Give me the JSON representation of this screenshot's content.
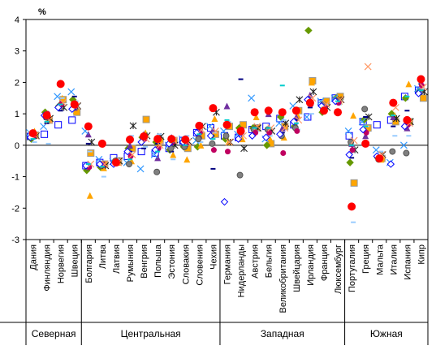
{
  "chart_data": {
    "type": "scatter",
    "ylabel": "%",
    "ylim": [
      -3,
      4
    ],
    "yticks": [
      "-3",
      "-2",
      "-1",
      "0",
      "1",
      "2",
      "3",
      "4"
    ],
    "grid": false,
    "legend": "none",
    "categories": [
      "Дания",
      "Финляндия",
      "Норвегия",
      "Швеция",
      "Болгария",
      "Литва",
      "Латвия",
      "Румыния",
      "Венгрия",
      "Польша",
      "Эстония",
      "Словакия",
      "Словения",
      "Чехия",
      "Германия",
      "Нидерланды",
      "Австрия",
      "Бельгия",
      "Великобритания",
      "Швейцария",
      "Ирландия",
      "Франция",
      "Люксембург",
      "Португалия",
      "Греция",
      "Мальта",
      "Италия",
      "Испания",
      "Кипр"
    ],
    "groups": [
      {
        "name": "Северная",
        "count": 4
      },
      {
        "name": "Центральная",
        "count": 10
      },
      {
        "name": "Западная",
        "count": 9
      },
      {
        "name": "Южная",
        "count": 6
      }
    ],
    "colors": {
      "red": "#ff0000",
      "blue": "#0000ff",
      "orange": "#ffa500",
      "green": "#669900",
      "purple": "#7030a0",
      "navy": "#000080",
      "skyblue": "#3399ff",
      "lightblue": "#99ccff",
      "cyan": "#00cccc",
      "gray": "#808080",
      "dark": "#222222",
      "magenta": "#c00060",
      "salmon": "#ff9966"
    },
    "series": [
      {
        "marker": "circle",
        "color": "red",
        "values": [
          0.38,
          0.95,
          1.95,
          1.3,
          0.6,
          0.05,
          -0.55,
          0.18,
          0.28,
          0.2,
          0.2,
          0.18,
          0.62,
          1.18,
          0.65,
          0.45,
          1.05,
          1.1,
          1.05,
          1.1,
          1.35,
          1.1,
          1.05,
          -1.95,
          0.05,
          -0.42,
          1.35,
          0.8,
          2.1
        ]
      },
      {
        "marker": "square",
        "color": "blue",
        "values": [
          0.28,
          0.35,
          0.65,
          0.8,
          -0.65,
          -0.55,
          -0.4,
          -0.35,
          -0.2,
          -0.25,
          -0.1,
          0.15,
          0.4,
          0.55,
          0.3,
          0.25,
          0.5,
          0.6,
          0.85,
          0.65,
          0.9,
          1.35,
          1.5,
          0.3,
          0.75,
          0.65,
          0.8,
          1.55,
          1.75
        ]
      },
      {
        "marker": "square",
        "color": "orange",
        "values": [
          0.32,
          0.8,
          1.45,
          1.05,
          -0.25,
          -0.6,
          -0.5,
          -0.1,
          0.82,
          0.15,
          0.15,
          -0.1,
          0.3,
          0.35,
          0.6,
          0.65,
          0.55,
          0.05,
          0.6,
          1.1,
          2.05,
          1.4,
          1.55,
          -1.2,
          0.55,
          -0.42,
          0.75,
          0.75,
          1.5
        ]
      },
      {
        "marker": "diamond",
        "color": "green",
        "values": [
          0.2,
          1.05,
          1.25,
          1.45,
          -0.8,
          -0.7,
          -0.55,
          -0.1,
          0.25,
          0.1,
          -0.15,
          -0.05,
          -0.05,
          0.3,
          0.2,
          0.55,
          0.55,
          0.0,
          0.9,
          0.6,
          3.65,
          1.05,
          1.5,
          -0.55,
          0.8,
          -0.4,
          1.0,
          1.5,
          1.7
        ]
      },
      {
        "marker": "triangle",
        "color": "orange",
        "values": [
          0.45,
          1.0,
          1.5,
          1.1,
          -1.6,
          -0.72,
          -0.55,
          -0.5,
          0.4,
          0.05,
          -0.3,
          -0.45,
          0.0,
          0.85,
          0.1,
          0.2,
          0.9,
          0.2,
          0.25,
          0.95,
          2.0,
          1.35,
          1.4,
          0.95,
          0.55,
          -0.45,
          0.95,
          1.95,
          1.75
        ]
      },
      {
        "marker": "triangle",
        "color": "purple",
        "values": [
          0.3,
          0.9,
          1.35,
          1.2,
          0.35,
          -0.62,
          -0.48,
          0.0,
          0.35,
          -0.4,
          0.25,
          0.05,
          0.3,
          0.5,
          1.25,
          0.4,
          0.45,
          1.0,
          0.55,
          0.9,
          1.6,
          1.3,
          1.45,
          0.05,
          0.3,
          -0.4,
          0.9,
          0.55,
          1.75
        ]
      },
      {
        "marker": "x",
        "color": "skyblue",
        "values": [
          0.4,
          0.6,
          1.55,
          1.7,
          0.45,
          -0.45,
          -0.52,
          -0.55,
          -0.75,
          -0.3,
          0.0,
          0.2,
          0.15,
          0.6,
          0.45,
          0.35,
          1.5,
          0.2,
          0.7,
          1.25,
          0.9,
          1.4,
          1.5,
          0.45,
          0.75,
          -0.15,
          -0.55,
          0.0,
          1.8
        ]
      },
      {
        "marker": "star",
        "color": "dark",
        "values": [
          0.3,
          0.85,
          1.2,
          1.25,
          0.1,
          -0.65,
          -0.5,
          0.62,
          0.3,
          0.28,
          0.0,
          0.12,
          0.6,
          1.05,
          0.1,
          -0.1,
          0.55,
          0.45,
          0.7,
          1.45,
          1.7,
          1.2,
          1.45,
          -0.15,
          0.9,
          -0.3,
          0.85,
          0.75,
          1.7
        ]
      },
      {
        "marker": "dash",
        "color": "navy",
        "values": [
          0.35,
          0.7,
          1.1,
          1.55,
          0.05,
          -0.55,
          -0.55,
          -0.2,
          -0.1,
          0.05,
          -0.2,
          0.0,
          0.25,
          -0.75,
          0.6,
          2.1,
          1.0,
          0.5,
          0.4,
          0.8,
          1.2,
          1.25,
          1.35,
          -0.4,
          0.9,
          -0.35,
          0.6,
          1.1,
          1.95
        ]
      },
      {
        "marker": "dash",
        "color": "lightblue",
        "values": [
          0.1,
          0.05,
          1.5,
          1.4,
          -0.2,
          -1.0,
          -0.45,
          0.3,
          -0.05,
          0.35,
          -0.45,
          0.3,
          0.1,
          0.4,
          0.75,
          0.35,
          0.45,
          0.3,
          0.8,
          0.5,
          1.0,
          1.3,
          1.3,
          -2.45,
          0.6,
          -0.2,
          0.3,
          0.3,
          1.8
        ]
      },
      {
        "marker": "circle",
        "color": "gray",
        "values": [
          0.25,
          0.9,
          1.25,
          1.2,
          -0.7,
          -0.65,
          -0.5,
          -0.6,
          0.25,
          -0.85,
          -0.1,
          -0.05,
          0.2,
          0.05,
          0.3,
          -0.95,
          0.5,
          0.5,
          0.3,
          0.55,
          1.4,
          1.3,
          1.4,
          0.1,
          1.15,
          -0.45,
          -0.2,
          -0.25,
          1.7
        ]
      },
      {
        "marker": "circle",
        "color": "magenta",
        "values": [
          0.3,
          1.0,
          1.3,
          1.25,
          -0.7,
          -0.62,
          -0.58,
          -0.35,
          0.2,
          -0.1,
          0.1,
          0.05,
          0.4,
          -0.15,
          -0.2,
          0.5,
          0.4,
          0.4,
          -0.25,
          0.45,
          1.3,
          1.2,
          1.35,
          -0.15,
          0.4,
          -0.4,
          1.35,
          0.65,
          1.9
        ]
      },
      {
        "marker": "diamond",
        "color": "blue",
        "values": [
          0.25,
          0.95,
          1.2,
          1.15,
          -0.65,
          -0.6,
          -0.6,
          -0.2,
          0.1,
          -0.15,
          0.05,
          0.1,
          0.4,
          0.3,
          -1.8,
          0.2,
          0.3,
          0.25,
          0.35,
          0.75,
          1.45,
          1.25,
          1.4,
          -0.3,
          0.5,
          -0.35,
          -0.6,
          0.6,
          1.65
        ]
      },
      {
        "marker": "x",
        "color": "salmon",
        "values": [
          0.3,
          0.8,
          1.35,
          1.25,
          -0.6,
          -0.6,
          -0.55,
          -0.3,
          0.2,
          0.0,
          0.15,
          0.1,
          0.5,
          0.45,
          0.1,
          0.3,
          0.6,
          0.55,
          0.55,
          0.8,
          1.5,
          1.3,
          1.45,
          0.15,
          2.5,
          -0.3,
          1.2,
          0.7,
          1.85
        ]
      },
      {
        "marker": "dash",
        "color": "cyan",
        "values": [
          0.2,
          0.75,
          1.3,
          1.3,
          -0.6,
          -0.68,
          -0.52,
          -0.45,
          0.25,
          -0.2,
          0.1,
          0.0,
          0.35,
          0.2,
          0.8,
          0.45,
          0.55,
          0.55,
          1.9,
          0.7,
          1.35,
          1.2,
          1.4,
          0.0,
          0.6,
          -0.38,
          0.95,
          1.55,
          1.75
        ]
      }
    ]
  }
}
